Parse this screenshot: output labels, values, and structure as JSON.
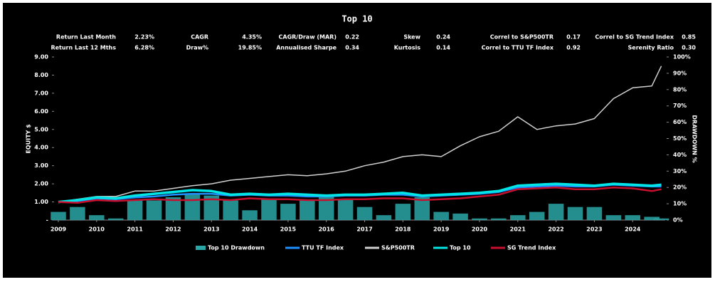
{
  "chart_data": {
    "type": "line",
    "title": "Top 10",
    "stats": [
      [
        {
          "label": "Return Last Month",
          "value": "2.23%"
        },
        {
          "label": "CAGR",
          "value": "4.35%"
        },
        {
          "label": "CAGR/Draw (MAR)",
          "value": "0.22"
        },
        {
          "label": "Skew",
          "value": "0.24"
        },
        {
          "label": "Correl to S&P500TR",
          "value": "0.17"
        },
        {
          "label": "Correl to SG Trend Index",
          "value": "0.85"
        }
      ],
      [
        {
          "label": "Return Last 12 Mths",
          "value": "6.28%"
        },
        {
          "label": "Draw%",
          "value": "19.85%"
        },
        {
          "label": "Annualised Sharpe",
          "value": "0.34"
        },
        {
          "label": "Kurtosis",
          "value": "0.14"
        },
        {
          "label": "Correl to TTU TF Index",
          "value": "0.92"
        },
        {
          "label": "Serenity Ratio",
          "value": "0.30"
        }
      ]
    ],
    "ylabel": "EQUITY $",
    "y2label": "DRAWDOWN %",
    "x": [
      2009,
      2009.5,
      2010,
      2010.5,
      2011,
      2011.5,
      2012,
      2012.5,
      2013,
      2013.5,
      2014,
      2014.5,
      2015,
      2015.5,
      2016,
      2016.5,
      2017,
      2017.5,
      2018,
      2018.5,
      2019,
      2019.5,
      2020,
      2020.5,
      2021,
      2021.5,
      2022,
      2022.5,
      2023,
      2023.5,
      2024,
      2024.5,
      2024.75
    ],
    "series": [
      {
        "name": "Top 10 Drawdown",
        "color": "#2aa6a6",
        "kind": "bar",
        "axis": "y2",
        "values": [
          5,
          8,
          3,
          1,
          12,
          12,
          14,
          16,
          15,
          12,
          6,
          13,
          10,
          12,
          15,
          13,
          8,
          3,
          10,
          14,
          5,
          4,
          1,
          1,
          3,
          5,
          10,
          8,
          8,
          3,
          3,
          2,
          1
        ]
      },
      {
        "name": "TTU TF Index",
        "color": "#1e90ff",
        "kind": "line",
        "width": 2.5,
        "values": [
          1.0,
          1.05,
          1.2,
          1.15,
          1.25,
          1.3,
          1.4,
          1.45,
          1.45,
          1.35,
          1.4,
          1.35,
          1.35,
          1.3,
          1.3,
          1.35,
          1.35,
          1.4,
          1.4,
          1.3,
          1.35,
          1.4,
          1.45,
          1.55,
          1.8,
          1.85,
          1.9,
          1.85,
          1.85,
          1.95,
          1.9,
          1.85,
          1.85
        ]
      },
      {
        "name": "S&P500TR",
        "color": "#d0d0d0",
        "kind": "line",
        "width": 1.5,
        "values": [
          1.0,
          1.15,
          1.3,
          1.3,
          1.6,
          1.6,
          1.75,
          1.9,
          2.0,
          2.2,
          2.3,
          2.4,
          2.5,
          2.45,
          2.55,
          2.7,
          3.0,
          3.2,
          3.5,
          3.6,
          3.5,
          4.1,
          4.6,
          4.9,
          5.7,
          5.0,
          5.2,
          5.3,
          5.6,
          6.7,
          7.3,
          7.4,
          8.5
        ]
      },
      {
        "name": "Top 10",
        "color": "#00e5e5",
        "kind": "line",
        "width": 3.5,
        "values": [
          1.0,
          1.1,
          1.25,
          1.2,
          1.35,
          1.45,
          1.55,
          1.65,
          1.6,
          1.4,
          1.45,
          1.4,
          1.45,
          1.4,
          1.35,
          1.4,
          1.4,
          1.45,
          1.5,
          1.35,
          1.4,
          1.45,
          1.5,
          1.6,
          1.9,
          1.95,
          2.0,
          1.95,
          1.9,
          2.0,
          1.95,
          1.9,
          1.95
        ]
      },
      {
        "name": "SG Trend Index",
        "color": "#c8102e",
        "kind": "line",
        "width": 2.5,
        "values": [
          1.0,
          0.95,
          1.1,
          1.05,
          1.1,
          1.15,
          1.1,
          1.1,
          1.15,
          1.1,
          1.2,
          1.15,
          1.15,
          1.1,
          1.1,
          1.15,
          1.15,
          1.2,
          1.2,
          1.1,
          1.15,
          1.2,
          1.3,
          1.4,
          1.7,
          1.75,
          1.8,
          1.7,
          1.7,
          1.8,
          1.75,
          1.6,
          1.7
        ]
      }
    ],
    "xlim": [
      2009,
      2024.85
    ],
    "xticks": [
      2009,
      2010,
      2011,
      2012,
      2013,
      2014,
      2015,
      2016,
      2017,
      2018,
      2019,
      2020,
      2021,
      2022,
      2023,
      2024
    ],
    "ylim": [
      0,
      9
    ],
    "yticks": [
      {
        "value": 0,
        "label": "-"
      },
      {
        "value": 1,
        "label": "1.00"
      },
      {
        "value": 2,
        "label": "2.00"
      },
      {
        "value": 3,
        "label": "3.00"
      },
      {
        "value": 4,
        "label": "4.00"
      },
      {
        "value": 5,
        "label": "5.00"
      },
      {
        "value": 6,
        "label": "6.00"
      },
      {
        "value": 7,
        "label": "7.00"
      },
      {
        "value": 8,
        "label": "8.00"
      },
      {
        "value": 9,
        "label": "9.00"
      }
    ],
    "y2lim": [
      0,
      100
    ],
    "y2ticks": [
      {
        "value": 0,
        "label": "0%"
      },
      {
        "value": 10,
        "label": "10%"
      },
      {
        "value": 20,
        "label": "20%"
      },
      {
        "value": 30,
        "label": "30%"
      },
      {
        "value": 40,
        "label": "40%"
      },
      {
        "value": 50,
        "label": "50%"
      },
      {
        "value": 60,
        "label": "60%"
      },
      {
        "value": 70,
        "label": "70%"
      },
      {
        "value": 80,
        "label": "80%"
      },
      {
        "value": 90,
        "label": "90%"
      },
      {
        "value": 100,
        "label": "100%"
      }
    ],
    "grid": false
  }
}
